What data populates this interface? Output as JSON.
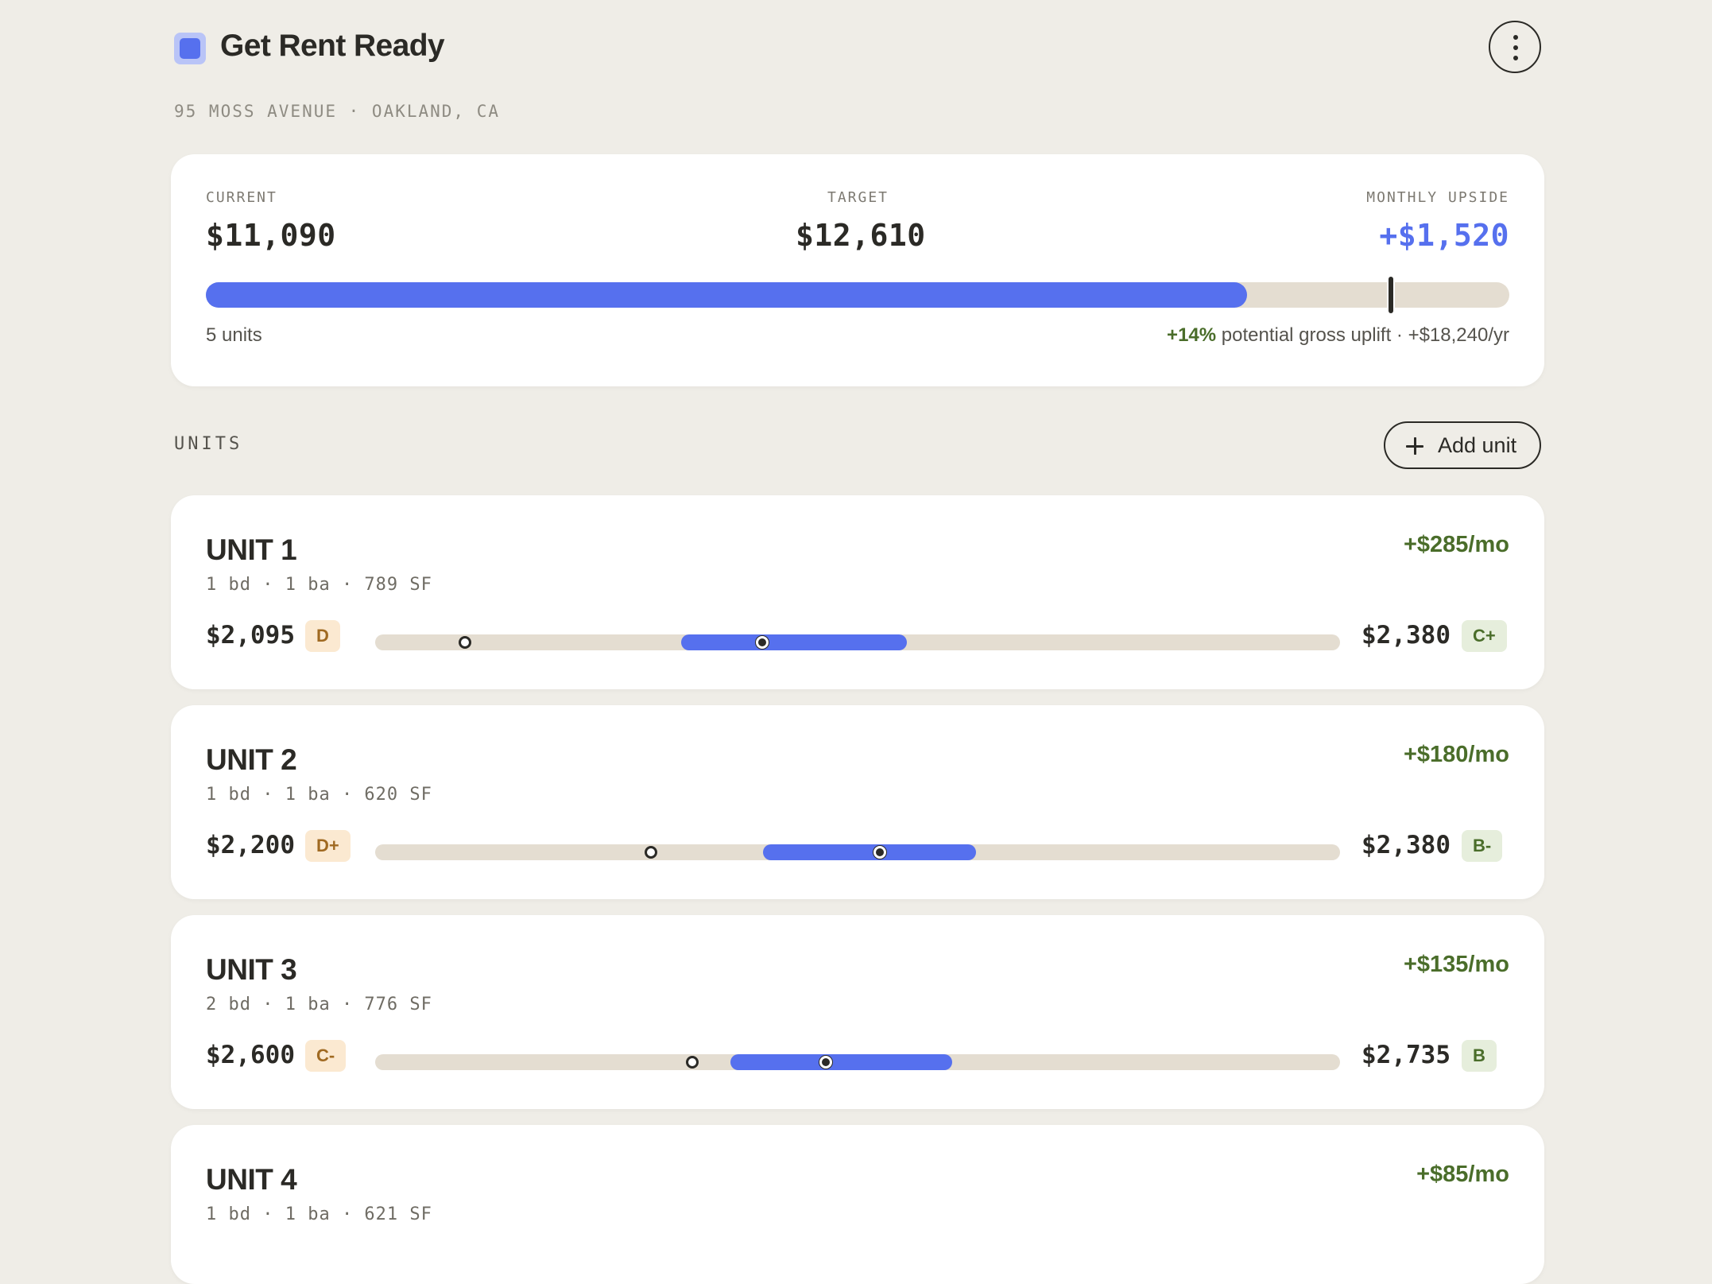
{
  "app": {
    "title": "Get Rent Ready",
    "address": "95 MOSS AVENUE · OAKLAND, CA"
  },
  "summary": {
    "current_label": "CURRENT",
    "current_value": "$11,090",
    "target_label": "TARGET",
    "target_value": "$12,610",
    "upside_label": "MONTHLY UPSIDE",
    "upside_value": "+$1,520",
    "units_count": "5 units",
    "uplift_pct": "+14%",
    "uplift_text": " potential gross uplift · +$18,240/yr",
    "progress_fill_fraction": 0.799,
    "target_marker_fraction": 0.909
  },
  "units_section": {
    "title": "UNITS",
    "add_label": "Add unit"
  },
  "units": [
    {
      "name": "UNIT 1",
      "meta": "1 bd · 1 ba · 789 SF",
      "gain": "+$285/mo",
      "current": "$2,095",
      "current_grade": "D",
      "target": "$2,380",
      "target_grade": "C+",
      "current_pos": 0.093,
      "band_start": 0.317,
      "band_end": 0.551,
      "target_pos": 0.401
    },
    {
      "name": "UNIT 2",
      "meta": "1 bd · 1 ba · 620 SF",
      "gain": "+$180/mo",
      "current": "$2,200",
      "current_grade": "D+",
      "target": "$2,380",
      "target_grade": "B-",
      "current_pos": 0.286,
      "band_start": 0.402,
      "band_end": 0.623,
      "target_pos": 0.523
    },
    {
      "name": "UNIT 3",
      "meta": "2 bd · 1 ba · 776 SF",
      "gain": "+$135/mo",
      "current": "$2,600",
      "current_grade": "C-",
      "target": "$2,735",
      "target_grade": "B",
      "current_pos": 0.329,
      "band_start": 0.368,
      "band_end": 0.598,
      "target_pos": 0.467
    },
    {
      "name": "UNIT 4",
      "meta": "1 bd · 1 ba · 621 SF",
      "gain": "+$85/mo"
    }
  ]
}
